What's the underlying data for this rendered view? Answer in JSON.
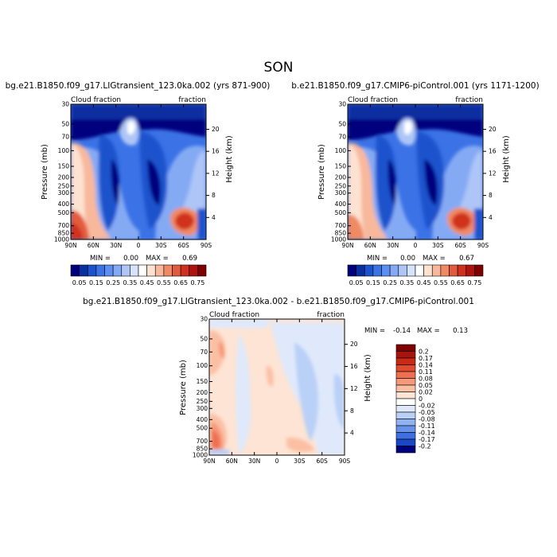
{
  "season": "SON",
  "chart_data": [
    {
      "type": "heatmap",
      "title": "bg.e21.B1850.f09_g17.LIGtransient_123.0ka.002 (yrs 871-900)",
      "left_label": "Cloud fraction",
      "right_label": "fraction",
      "xlabel": "",
      "ylabel": "Pressure (mb)",
      "y2label": "Height (km)",
      "x_ticks": [
        "90N",
        "60N",
        "30N",
        "0",
        "30S",
        "60S",
        "90S"
      ],
      "y_ticks": [
        30,
        50,
        70,
        100,
        150,
        200,
        250,
        300,
        400,
        500,
        700,
        850,
        1000
      ],
      "y2_ticks": [
        20,
        16,
        12,
        8,
        4
      ],
      "ylim": [
        1000,
        30
      ],
      "min_label": "MIN =",
      "min_value": "0.00",
      "max_label": "MAX =",
      "max_value": "0.69",
      "colorbar": {
        "levels": [
          "0.05",
          "0.15",
          "0.25",
          "0.35",
          "0.45",
          "0.55",
          "0.65",
          "0.75"
        ],
        "colors": [
          "#00007f",
          "#0a2fa0",
          "#1b52cd",
          "#3b72e6",
          "#5d8ef1",
          "#85aaf4",
          "#adc6f7",
          "#d6e3fb",
          "#ffffff",
          "#fde2d2",
          "#f8b89c",
          "#f08a64",
          "#e35b3d",
          "#d0311f",
          "#ad1410",
          "#800000"
        ]
      }
    },
    {
      "type": "heatmap",
      "title": "b.e21.B1850.f09_g17.CMIP6-piControl.001 (yrs 1171-1200)",
      "left_label": "Cloud fraction",
      "right_label": "fraction",
      "xlabel": "",
      "ylabel": "Pressure (mb)",
      "y2label": "Height (km)",
      "x_ticks": [
        "90N",
        "60N",
        "30N",
        "0",
        "30S",
        "60S",
        "90S"
      ],
      "y_ticks": [
        30,
        50,
        70,
        100,
        150,
        200,
        250,
        300,
        400,
        500,
        700,
        850,
        1000
      ],
      "y2_ticks": [
        20,
        16,
        12,
        8,
        4
      ],
      "ylim": [
        1000,
        30
      ],
      "min_label": "MIN =",
      "min_value": "0.00",
      "max_label": "MAX =",
      "max_value": "0.67",
      "colorbar": {
        "levels": [
          "0.05",
          "0.15",
          "0.25",
          "0.35",
          "0.45",
          "0.55",
          "0.65",
          "0.75"
        ],
        "colors": [
          "#00007f",
          "#0a2fa0",
          "#1b52cd",
          "#3b72e6",
          "#5d8ef1",
          "#85aaf4",
          "#adc6f7",
          "#d6e3fb",
          "#ffffff",
          "#fde2d2",
          "#f8b89c",
          "#f08a64",
          "#e35b3d",
          "#d0311f",
          "#ad1410",
          "#800000"
        ]
      }
    },
    {
      "type": "heatmap",
      "title": "bg.e21.B1850.f09_g17.LIGtransient_123.0ka.002 - b.e21.B1850.f09_g17.CMIP6-piControl.001",
      "left_label": "Cloud fraction",
      "right_label": "fraction",
      "xlabel": "",
      "ylabel": "Pressure (mb)",
      "y2label": "Height (km)",
      "x_ticks": [
        "90N",
        "60N",
        "30N",
        "0",
        "30S",
        "60S",
        "90S"
      ],
      "y_ticks": [
        30,
        50,
        70,
        100,
        150,
        200,
        250,
        300,
        400,
        500,
        700,
        850,
        1000
      ],
      "y2_ticks": [
        20,
        16,
        12,
        8,
        4
      ],
      "ylim": [
        1000,
        30
      ],
      "min_label": "MIN =",
      "min_value": "-0.14",
      "max_label": "MAX =",
      "max_value": "0.13",
      "colorbar": {
        "levels": [
          "0.2",
          "0.17",
          "0.14",
          "0.11",
          "0.08",
          "0.05",
          "0.02",
          "0",
          "-0.02",
          "-0.05",
          "-0.08",
          "-0.11",
          "-0.14",
          "-0.17",
          "-0.2"
        ],
        "colors": [
          "#800000",
          "#a8140e",
          "#c92a16",
          "#e04a2e",
          "#ee7050",
          "#f6997a",
          "#fbc0a4",
          "#fde4d4",
          "#ffffff",
          "#dfe9fb",
          "#b9d0f7",
          "#8fb2f2",
          "#6692ec",
          "#3f6fe0",
          "#1a48c4",
          "#00007f"
        ]
      }
    }
  ]
}
